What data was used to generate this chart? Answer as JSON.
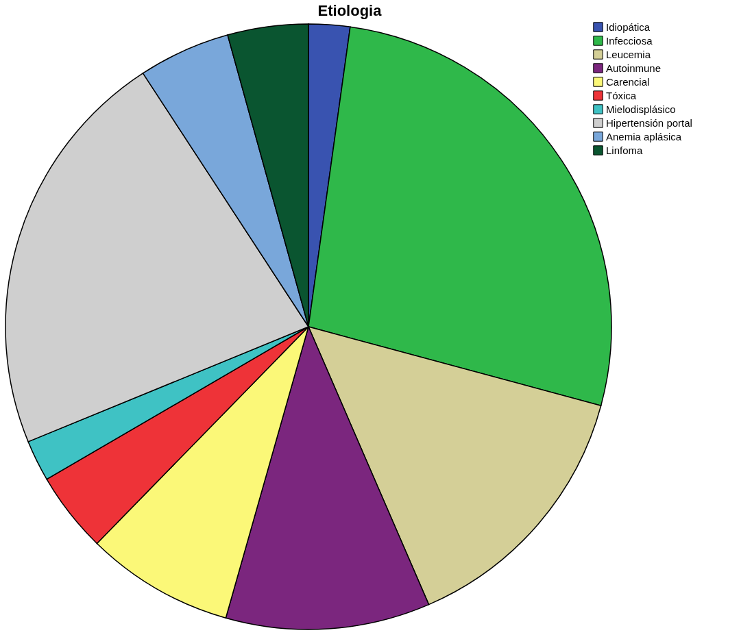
{
  "chart_data": {
    "type": "pie",
    "title": "Etiologia",
    "categories": [
      "Idiopática",
      "Infecciosa",
      "Leucemia",
      "Autoinmune",
      "Carencial",
      "Tóxica",
      "Mielodisplásico",
      "Hipertensión portal",
      "Anemia aplásica",
      "Linfoma"
    ],
    "values": [
      2.2,
      27.0,
      14.3,
      10.9,
      7.9,
      4.3,
      2.2,
      22.0,
      4.9,
      4.3
    ],
    "colors": [
      "#3953b0",
      "#2fb84a",
      "#d4cf97",
      "#7b267e",
      "#fbf878",
      "#ee3338",
      "#3fc2c4",
      "#cfcfcf",
      "#79a7da",
      "#0a5530"
    ],
    "legend": "top right"
  }
}
